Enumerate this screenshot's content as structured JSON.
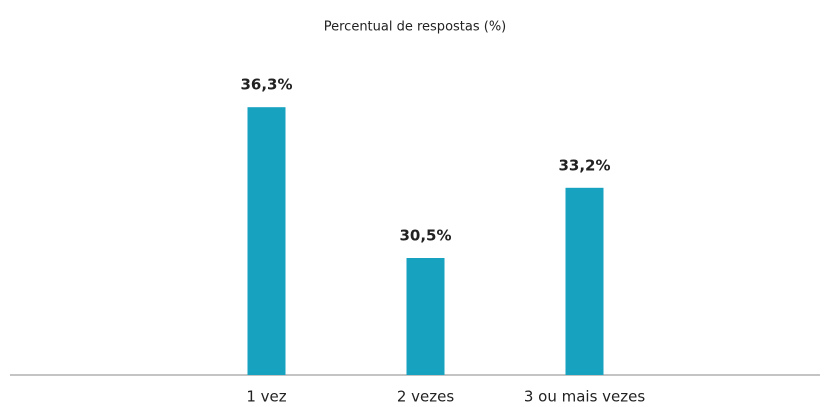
{
  "chart_data": {
    "type": "bar",
    "title": "Percentual de respostas (%)",
    "categories": [
      "1 vez",
      "2 vezes",
      "3 ou mais vezes"
    ],
    "values": [
      36.3,
      30.5,
      33.2
    ],
    "value_labels": [
      "36,3%",
      "30,5%",
      "33,2%"
    ],
    "color": "#17a2c0",
    "ylim": [
      26,
      38
    ]
  }
}
